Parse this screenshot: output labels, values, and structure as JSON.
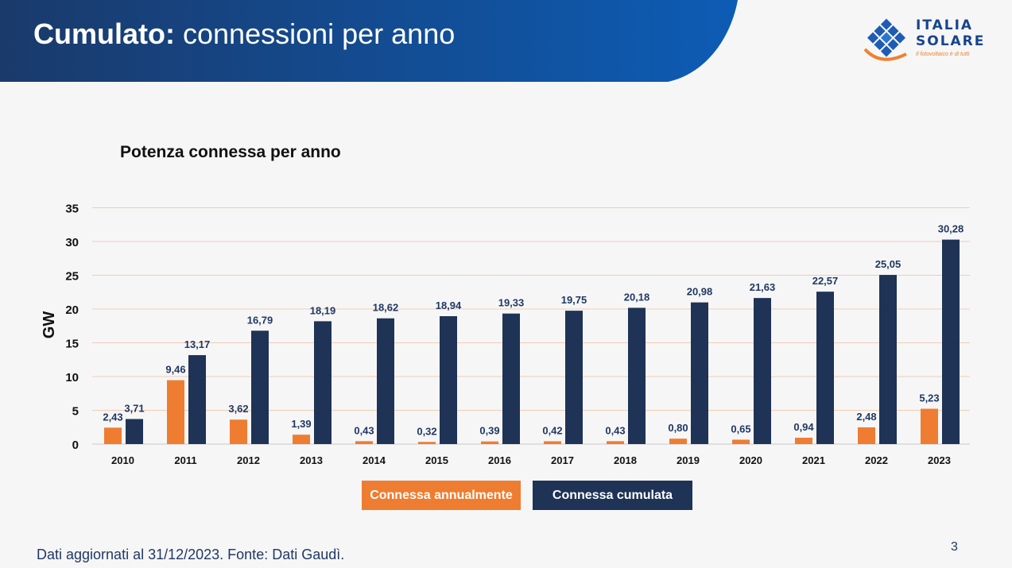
{
  "slide": {
    "title_bold": "Cumulato:",
    "title_rest": "connessioni per anno",
    "logo_line1": "ITALIA",
    "logo_line2": "SOLARE",
    "logo_tagline": "Il fotovoltaico è di tutti",
    "footer": "Dati aggiornati al 31/12/2023. Fonte: Dati Gaudì.",
    "page_number": "3"
  },
  "colors": {
    "header_dark": "#1a3a6b",
    "header_light": "#0d5cb5",
    "annual": "#ee7d31",
    "cumulative": "#1e3355",
    "grid": "#f2cdb5"
  },
  "chart_data": {
    "type": "bar",
    "title": "Potenza connessa per anno",
    "xlabel": "",
    "ylabel": "GW",
    "ylim": [
      0,
      35
    ],
    "yticks": [
      0,
      5,
      10,
      15,
      20,
      25,
      30,
      35
    ],
    "categories": [
      "2010",
      "2011",
      "2012",
      "2013",
      "2014",
      "2015",
      "2016",
      "2017",
      "2018",
      "2019",
      "2020",
      "2021",
      "2022",
      "2023"
    ],
    "series": [
      {
        "name": "Connessa annualmente",
        "values": [
          2.43,
          9.46,
          3.62,
          1.39,
          0.43,
          0.32,
          0.39,
          0.42,
          0.43,
          0.8,
          0.65,
          0.94,
          2.48,
          5.23
        ],
        "labels": [
          "2,43",
          "9,46",
          "3,62",
          "1,39",
          "0,43",
          "0,32",
          "0,39",
          "0,42",
          "0,43",
          "0,80",
          "0,65",
          "0,94",
          "2,48",
          "5,23"
        ]
      },
      {
        "name": "Connessa cumulata",
        "values": [
          3.71,
          13.17,
          16.79,
          18.19,
          18.62,
          18.94,
          19.33,
          19.75,
          20.18,
          20.98,
          21.63,
          22.57,
          25.05,
          30.28
        ],
        "labels": [
          "3,71",
          "13,17",
          "16,79",
          "18,19",
          "18,62",
          "18,94",
          "19,33",
          "19,75",
          "20,18",
          "20,98",
          "21,63",
          "22,57",
          "25,05",
          "30,28"
        ]
      }
    ],
    "legend_position": "bottom"
  }
}
